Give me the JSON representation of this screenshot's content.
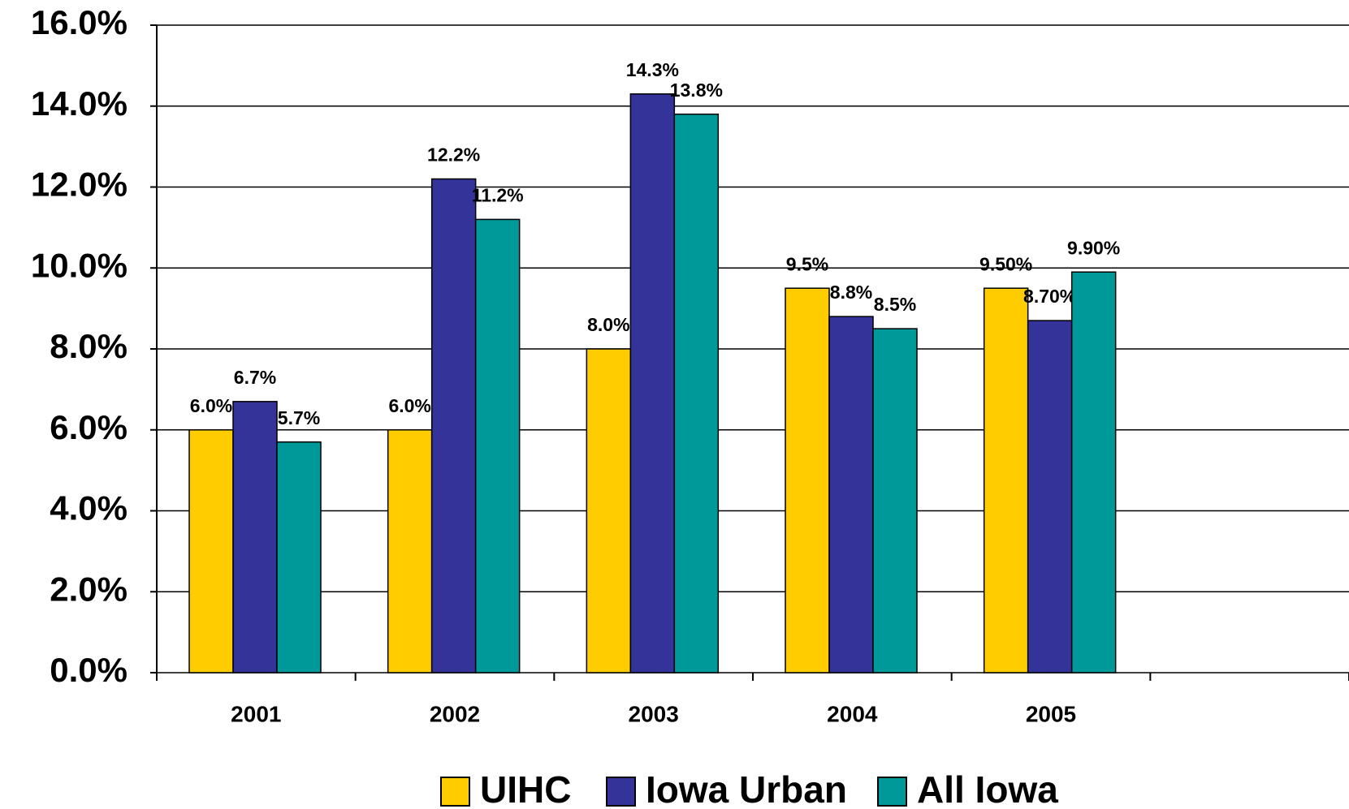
{
  "chart_data": {
    "type": "bar",
    "categories": [
      "2001",
      "2002",
      "2003",
      "2004",
      "2005",
      null
    ],
    "series": [
      {
        "name": "UIHC",
        "color": "#ffcc00",
        "values": [
          6.0,
          6.0,
          8.0,
          9.5,
          9.5,
          null
        ],
        "value_labels": [
          "6.0%",
          "6.0%",
          "8.0%",
          "9.5%",
          "9.50%",
          null
        ]
      },
      {
        "name": "Iowa Urban",
        "color": "#333399",
        "values": [
          6.7,
          12.2,
          14.3,
          8.8,
          8.7,
          null
        ],
        "value_labels": [
          "6.7%",
          "12.2%",
          "14.3%",
          "8.8%",
          "8.70%",
          null
        ]
      },
      {
        "name": "All Iowa",
        "color": "#009999",
        "values": [
          5.7,
          11.2,
          13.8,
          8.5,
          9.9,
          null
        ],
        "value_labels": [
          "5.7%",
          "11.2%",
          "13.8%",
          "8.5%",
          "9.90%",
          null
        ]
      }
    ],
    "ylim": [
      0,
      16
    ],
    "yticks": [
      {
        "value": 0,
        "label": "0.0%"
      },
      {
        "value": 2,
        "label": "2.0%"
      },
      {
        "value": 4,
        "label": "4.0%"
      },
      {
        "value": 6,
        "label": "6.0%"
      },
      {
        "value": 8,
        "label": "8.0%"
      },
      {
        "value": 10,
        "label": "10.0%"
      },
      {
        "value": 12,
        "label": "12.0%"
      },
      {
        "value": 14,
        "label": "14.0%"
      },
      {
        "value": 16,
        "label": "16.0%"
      }
    ],
    "grid": true,
    "legend": "bottom"
  }
}
